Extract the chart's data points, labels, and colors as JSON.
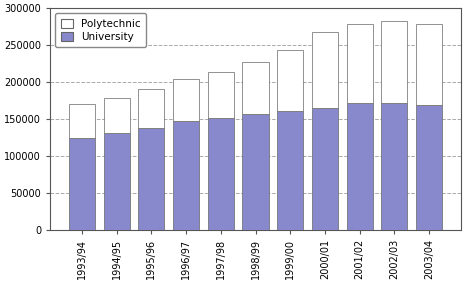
{
  "years": [
    "1993/94",
    "1994/95",
    "1995/96",
    "1996/97",
    "1997/98",
    "1998/99",
    "1999/00",
    "2000/01",
    "2001/02",
    "2002/03",
    "2003/04"
  ],
  "university": [
    124000,
    131000,
    137000,
    147000,
    151000,
    156000,
    161000,
    165000,
    171000,
    171000,
    169000
  ],
  "polytechnic": [
    46000,
    47000,
    53000,
    57000,
    63000,
    71000,
    82000,
    103000,
    107000,
    111000,
    109000
  ],
  "university_color": "#8888cc",
  "polytechnic_color": "#ffffff",
  "bar_edge_color": "#666666",
  "grid_color": "#aaaaaa",
  "background_color": "#ffffff",
  "ylim": [
    0,
    300000
  ],
  "yticks": [
    0,
    50000,
    100000,
    150000,
    200000,
    250000,
    300000
  ],
  "bar_width": 0.75,
  "tick_fontsize": 7.0,
  "legend_fontsize": 7.5
}
